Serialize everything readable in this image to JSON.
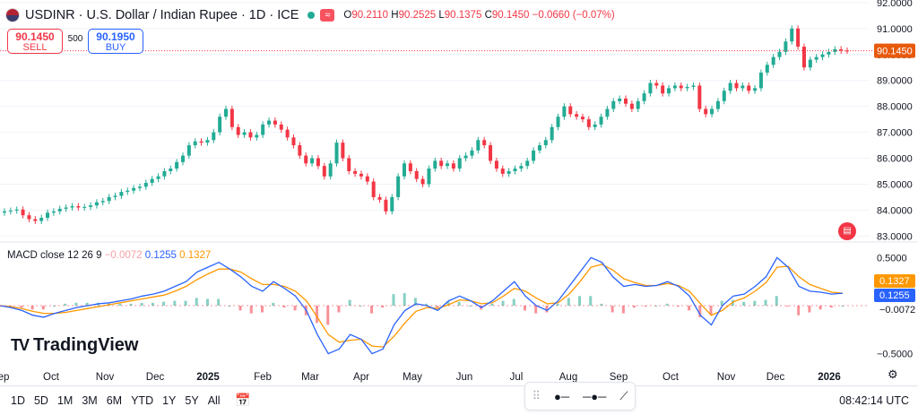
{
  "header": {
    "symbol": "USDINR · U.S. Dollar / Indian Rupee · 1D · ICE",
    "open_label": "O",
    "open": "90.2110",
    "high_label": "H",
    "high": "90.2525",
    "low_label": "L",
    "low": "90.1375",
    "close_label": "C",
    "close": "90.1450",
    "change": "−0.0660 (−0.07%)"
  },
  "trade": {
    "sell_price": "90.1450",
    "sell_label": "SELL",
    "spread": "500",
    "buy_price": "90.1950",
    "buy_label": "BUY"
  },
  "price_axis": [
    "92.0000",
    "91.0000",
    "90.0000",
    "89.0000",
    "88.0000",
    "87.0000",
    "86.0000",
    "85.0000",
    "84.0000",
    "83.0000"
  ],
  "price_tag": "90.1450",
  "macd": {
    "label": "MACD close 12 26 9",
    "hist": "−0.0072",
    "macd": "0.1255",
    "signal": "0.1327",
    "axis": [
      "0.5000",
      "−0.5000"
    ],
    "tag_signal": "0.1327",
    "tag_macd": "0.1255",
    "tag_hist": "−0.0072"
  },
  "time_axis": [
    "ep",
    "Oct",
    "Nov",
    "Dec",
    "2025",
    "Feb",
    "Mar",
    "Apr",
    "May",
    "Jun",
    "Jul",
    "Aug",
    "Sep",
    "Oct",
    "Nov",
    "Dec",
    "2026"
  ],
  "logo": "TradingView",
  "ranges": [
    "1D",
    "5D",
    "1M",
    "3M",
    "6M",
    "YTD",
    "1Y",
    "5Y",
    "All"
  ],
  "clock": "08:42:14 UTC",
  "colors": {
    "up": "#22ab94",
    "down": "#f23645",
    "macd": "#2962ff",
    "signal": "#ff9800",
    "tag": "#f7525f"
  },
  "chart_data": {
    "type": "candlestick",
    "close_series": [
      83.95,
      83.98,
      84.02,
      83.8,
      83.65,
      83.58,
      83.7,
      83.9,
      83.95,
      84.05,
      84.1,
      84.15,
      84.1,
      84.12,
      84.18,
      84.3,
      84.35,
      84.5,
      84.55,
      84.7,
      84.75,
      84.85,
      84.9,
      85.05,
      85.2,
      85.3,
      85.5,
      85.6,
      85.85,
      86.1,
      86.5,
      86.65,
      86.6,
      86.7,
      87.0,
      87.6,
      87.9,
      87.2,
      86.9,
      87.0,
      86.8,
      86.9,
      87.3,
      87.45,
      87.3,
      87.1,
      86.8,
      86.5,
      86.1,
      85.8,
      86.0,
      85.7,
      85.3,
      85.8,
      86.6,
      86.0,
      85.5,
      85.4,
      85.3,
      85.1,
      84.5,
      84.4,
      83.95,
      84.5,
      85.3,
      85.8,
      85.5,
      85.2,
      85.0,
      85.6,
      85.9,
      85.7,
      85.8,
      85.6,
      86.0,
      86.1,
      86.3,
      86.7,
      86.5,
      85.9,
      85.6,
      85.4,
      85.5,
      85.6,
      85.7,
      85.9,
      86.3,
      86.5,
      86.7,
      87.2,
      87.6,
      88.0,
      87.7,
      87.6,
      87.5,
      87.2,
      87.3,
      87.6,
      87.9,
      88.2,
      88.3,
      88.1,
      87.9,
      88.2,
      88.5,
      88.9,
      88.8,
      88.5,
      88.7,
      88.8,
      88.7,
      88.75,
      88.8,
      87.9,
      87.7,
      87.9,
      88.2,
      88.6,
      88.9,
      88.7,
      88.8,
      88.6,
      88.7,
      89.3,
      89.6,
      89.9,
      90.1,
      90.5,
      91.0,
      90.3,
      89.5,
      89.8,
      89.9,
      90.0,
      90.1,
      90.2,
      90.15,
      90.14
    ],
    "macd_series": [
      0.0,
      -0.02,
      -0.05,
      -0.1,
      -0.12,
      -0.08,
      -0.05,
      -0.02,
      0.0,
      0.02,
      0.03,
      0.05,
      0.07,
      0.1,
      0.12,
      0.15,
      0.2,
      0.25,
      0.35,
      0.4,
      0.45,
      0.38,
      0.3,
      0.2,
      0.15,
      0.25,
      0.18,
      0.1,
      -0.05,
      -0.3,
      -0.5,
      -0.45,
      -0.3,
      -0.35,
      -0.5,
      -0.45,
      -0.2,
      -0.05,
      0.02,
      0.0,
      -0.05,
      0.05,
      0.1,
      0.05,
      -0.02,
      0.05,
      0.15,
      0.25,
      0.1,
      0.0,
      -0.05,
      0.05,
      0.2,
      0.35,
      0.5,
      0.45,
      0.3,
      0.2,
      0.22,
      0.2,
      0.21,
      0.25,
      0.2,
      0.1,
      -0.1,
      -0.2,
      0.0,
      0.1,
      0.12,
      0.2,
      0.3,
      0.5,
      0.4,
      0.2,
      0.15,
      0.14,
      0.12,
      0.13
    ],
    "signal_series": [
      0.0,
      -0.01,
      -0.03,
      -0.06,
      -0.08,
      -0.08,
      -0.07,
      -0.05,
      -0.03,
      -0.01,
      0.01,
      0.03,
      0.05,
      0.07,
      0.09,
      0.11,
      0.15,
      0.2,
      0.27,
      0.33,
      0.38,
      0.38,
      0.35,
      0.28,
      0.22,
      0.22,
      0.2,
      0.15,
      0.05,
      -0.12,
      -0.3,
      -0.38,
      -0.36,
      -0.35,
      -0.42,
      -0.43,
      -0.32,
      -0.18,
      -0.06,
      -0.02,
      -0.03,
      0.01,
      0.06,
      0.05,
      0.02,
      0.03,
      0.1,
      0.18,
      0.15,
      0.08,
      0.02,
      0.03,
      0.12,
      0.25,
      0.4,
      0.43,
      0.37,
      0.28,
      0.24,
      0.21,
      0.21,
      0.23,
      0.21,
      0.15,
      0.02,
      -0.1,
      -0.05,
      0.04,
      0.08,
      0.15,
      0.24,
      0.4,
      0.41,
      0.3,
      0.22,
      0.18,
      0.14,
      0.13
    ],
    "ylim": [
      82.7,
      92.1
    ]
  }
}
